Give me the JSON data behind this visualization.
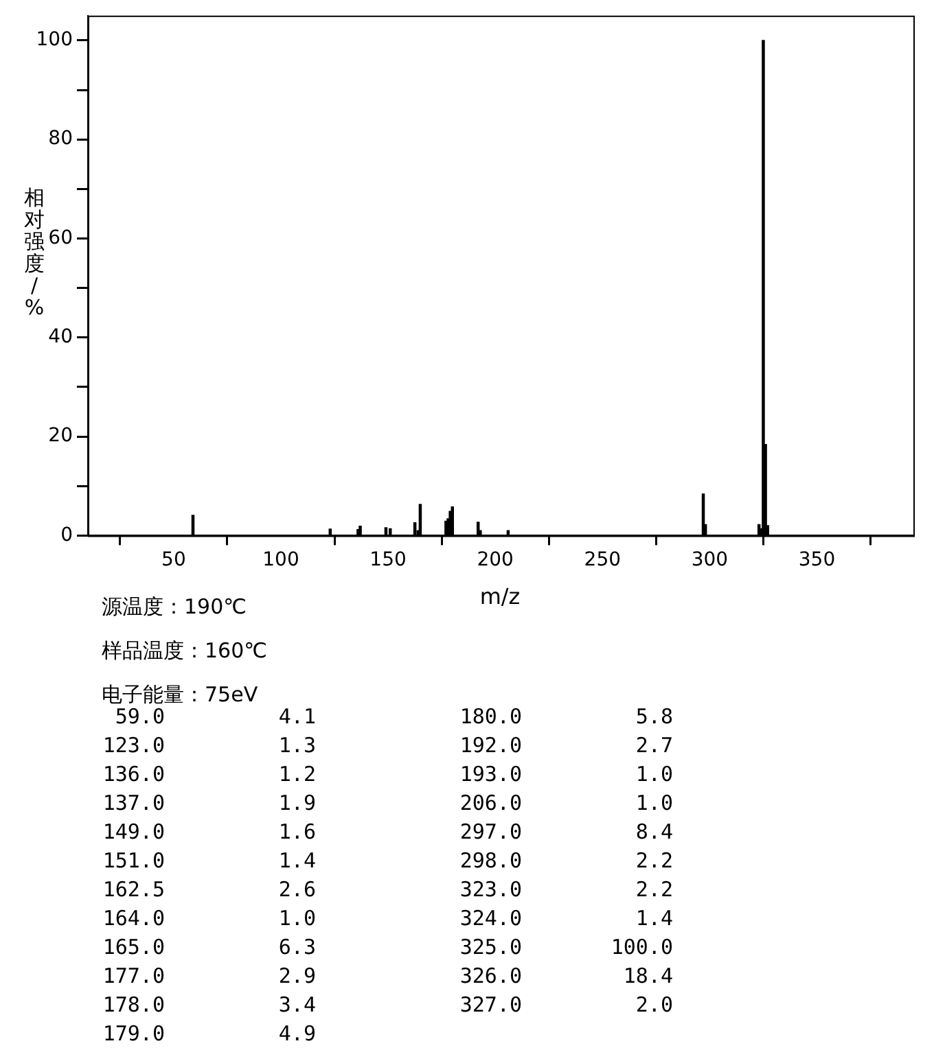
{
  "chart_data": {
    "type": "bar",
    "xlabel": "m/z",
    "ylabel": "相对强度/%",
    "x": [
      59,
      123,
      136,
      137,
      149,
      151,
      162.5,
      164,
      165,
      177,
      178,
      179,
      180,
      192,
      193,
      206,
      297,
      298,
      323,
      324,
      325,
      326,
      327
    ],
    "values": [
      4.1,
      1.3,
      1.2,
      1.9,
      1.6,
      1.4,
      2.6,
      1.0,
      6.3,
      2.9,
      3.4,
      4.9,
      5.8,
      2.7,
      1.0,
      1.0,
      8.4,
      2.2,
      2.2,
      1.4,
      100.0,
      18.4,
      2.0
    ],
    "color": "#000000",
    "xlim": [
      10,
      395
    ],
    "xticks": [
      50,
      100,
      150,
      200,
      250,
      300,
      350
    ],
    "ylim": [
      0,
      105
    ],
    "yticks": [
      0,
      {
        "value": 10,
        "label": null
      },
      20,
      {
        "value": 30,
        "label": null
      },
      40,
      {
        "value": 50,
        "label": null
      },
      60,
      {
        "value": 70,
        "label": null
      },
      80,
      {
        "value": 90,
        "label": null
      },
      100
    ],
    "grid": false,
    "legend": false,
    "annotations": [
      "源温度：190℃",
      "样品温度：160℃",
      "电子能量：75eV",
      "59.0",
      "4.1",
      "180.0",
      "5.8",
      "123.0",
      "1.3",
      "192.0",
      "2.7",
      "136.0",
      "1.2",
      "193.0",
      "1.0",
      "137.0",
      "1.9",
      "206.0",
      "1.0",
      "149.0",
      "1.6",
      "297.0",
      "8.4",
      "151.0",
      "1.4",
      "298.0",
      "2.2",
      "162.5",
      "2.6",
      "323.0",
      "2.2",
      "164.0",
      "1.0",
      "324.0",
      "1.4",
      "165.0",
      "6.3",
      "325.0",
      "100.0",
      "177.0",
      "2.9",
      "326.0",
      "18.4",
      "178.0",
      "3.4",
      "327.0",
      "2.0",
      "179.0",
      "4.9"
    ]
  }
}
